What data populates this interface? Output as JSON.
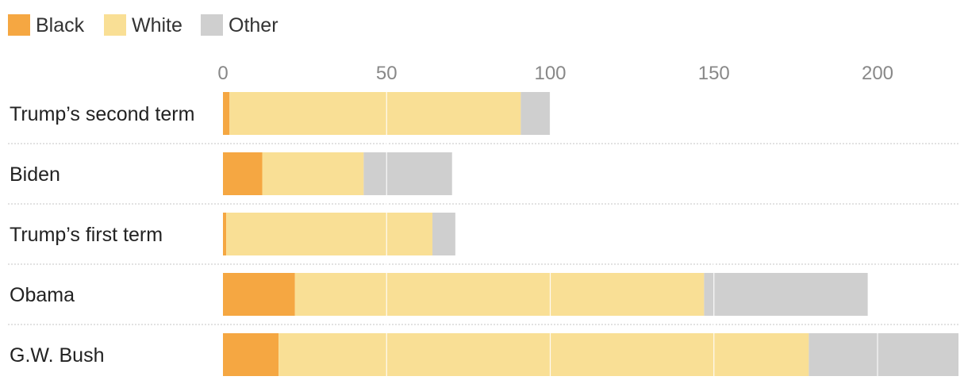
{
  "chart_data": {
    "type": "bar",
    "orientation": "horizontal",
    "stacked": true,
    "categories": [
      "Trump’s second term",
      "Biden",
      "Trump’s first term",
      "Obama",
      "G.W. Bush"
    ],
    "series": [
      {
        "name": "Black",
        "color": "#f5a742",
        "values": [
          2,
          12,
          1,
          22,
          17
        ]
      },
      {
        "name": "White",
        "color": "#f9df95",
        "values": [
          89,
          31,
          63,
          125,
          162
        ]
      },
      {
        "name": "Other",
        "color": "#cfcfcf",
        "values": [
          9,
          27,
          7,
          50,
          46
        ]
      }
    ],
    "xticks": [
      "0",
      "50",
      "100",
      "150",
      "200"
    ],
    "xlim": [
      0,
      225
    ],
    "grid": true,
    "legend": "top-left"
  }
}
